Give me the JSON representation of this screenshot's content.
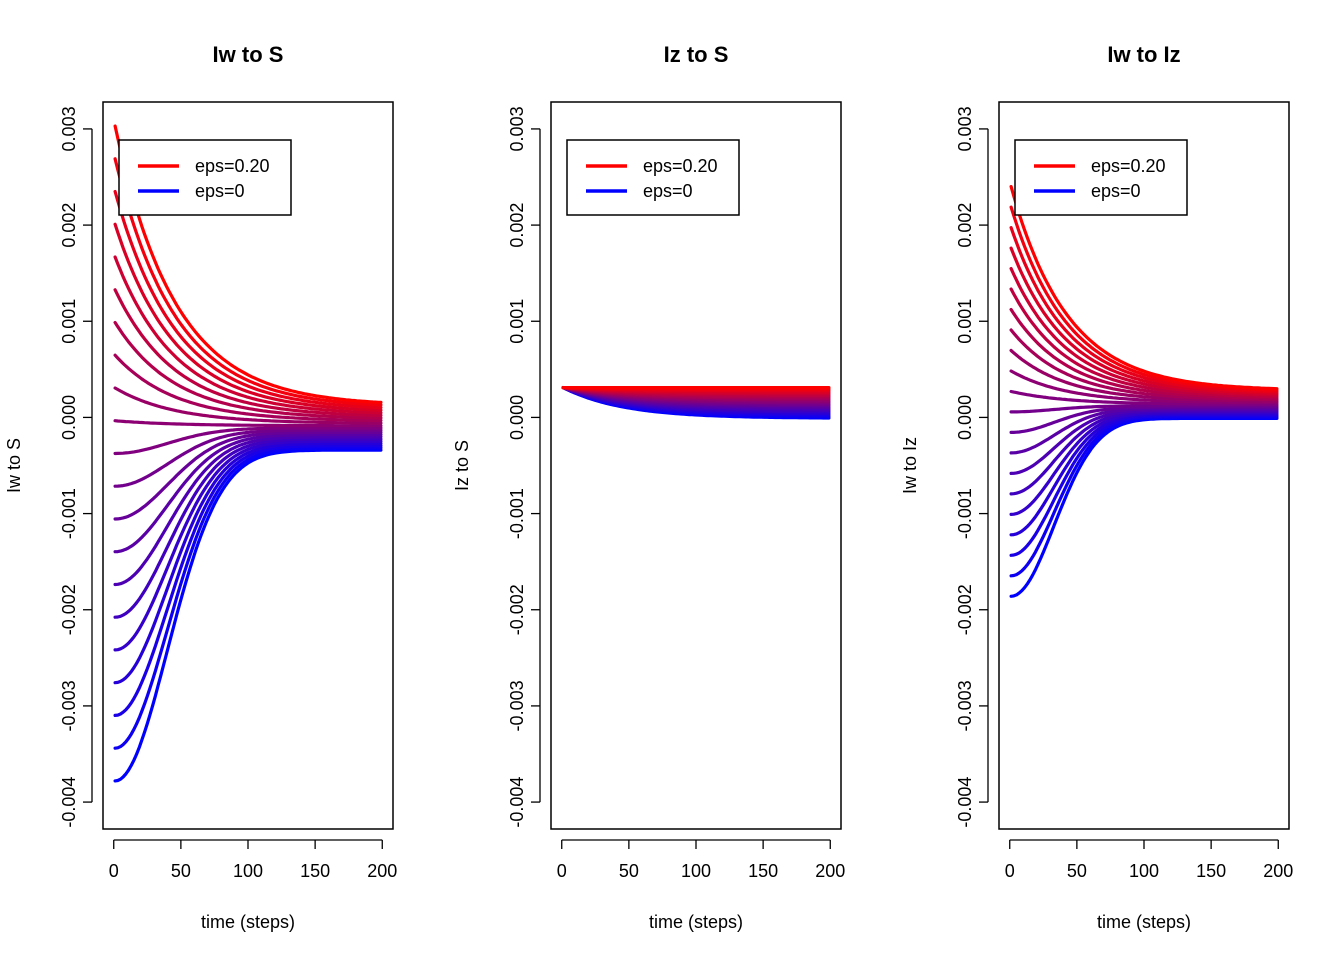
{
  "chart_data": [
    {
      "type": "line",
      "title": "Iw to S",
      "xlabel": "time (steps)",
      "ylabel": "Iw to S",
      "xlim": [
        0,
        200
      ],
      "ylim": [
        -0.004,
        0.003
      ],
      "xticks": [
        0,
        50,
        100,
        150,
        200
      ],
      "yticks": [
        -0.004,
        -0.003,
        -0.002,
        -0.001,
        0.0,
        0.001,
        0.002,
        0.003
      ],
      "ytick_labels": [
        "-0.004",
        "-0.003",
        "-0.002",
        "-0.001",
        "0.000",
        "0.001",
        "0.002",
        "0.003"
      ],
      "legend": {
        "position": "top-left",
        "entries": [
          {
            "label": "eps=0.20",
            "color": "#ff0000"
          },
          {
            "label": "eps=0",
            "color": "#0000ff"
          }
        ]
      },
      "color_gradient": {
        "from": "#0000ff",
        "to": "#ff0000"
      },
      "series_count": 21,
      "curve_model": {
        "start_top": 0.00303,
        "start_bottom": -0.00378,
        "end_top": 0.00012,
        "end_bottom": -0.00034,
        "decay_steps": 45,
        "hump_steps": 55
      },
      "x_range": [
        1,
        200
      ]
    },
    {
      "type": "line",
      "title": "Iz to S",
      "xlabel": "time (steps)",
      "ylabel": "Iz to S",
      "xlim": [
        0,
        200
      ],
      "ylim": [
        -0.004,
        0.003
      ],
      "xticks": [
        0,
        50,
        100,
        150,
        200
      ],
      "yticks": [
        -0.004,
        -0.003,
        -0.002,
        -0.001,
        0.0,
        0.001,
        0.002,
        0.003
      ],
      "ytick_labels": [
        "-0.004",
        "-0.003",
        "-0.002",
        "-0.001",
        "0.000",
        "0.001",
        "0.002",
        "0.003"
      ],
      "legend": {
        "position": "top-left",
        "entries": [
          {
            "label": "eps=0.20",
            "color": "#ff0000"
          },
          {
            "label": "eps=0",
            "color": "#0000ff"
          }
        ]
      },
      "color_gradient": {
        "from": "#0000ff",
        "to": "#ff0000"
      },
      "series_count": 21,
      "curve_model": {
        "start_top": 0.00031,
        "start_bottom": 0.00031,
        "end_top": 0.00031,
        "end_bottom": -1e-05,
        "decay_steps": 45,
        "hump_steps": 0
      },
      "x_range": [
        1,
        200
      ]
    },
    {
      "type": "line",
      "title": "Iw to Iz",
      "xlabel": "time (steps)",
      "ylabel": "Iw to Iz",
      "xlim": [
        0,
        200
      ],
      "ylim": [
        -0.004,
        0.003
      ],
      "xticks": [
        0,
        50,
        100,
        150,
        200
      ],
      "yticks": [
        -0.004,
        -0.003,
        -0.002,
        -0.001,
        0.0,
        0.001,
        0.002,
        0.003
      ],
      "ytick_labels": [
        "-0.004",
        "-0.003",
        "-0.002",
        "-0.001",
        "0.000",
        "0.001",
        "0.002",
        "0.003"
      ],
      "legend": {
        "position": "top-left",
        "entries": [
          {
            "label": "eps=0.20",
            "color": "#ff0000"
          },
          {
            "label": "eps=0",
            "color": "#0000ff"
          }
        ]
      },
      "color_gradient": {
        "from": "#0000ff",
        "to": "#ff0000"
      },
      "series_count": 21,
      "curve_model": {
        "start_top": 0.0024,
        "start_bottom": -0.00186,
        "end_top": 0.00028,
        "end_bottom": -1e-05,
        "decay_steps": 42,
        "hump_steps": 45
      },
      "x_range": [
        1,
        200
      ]
    }
  ]
}
